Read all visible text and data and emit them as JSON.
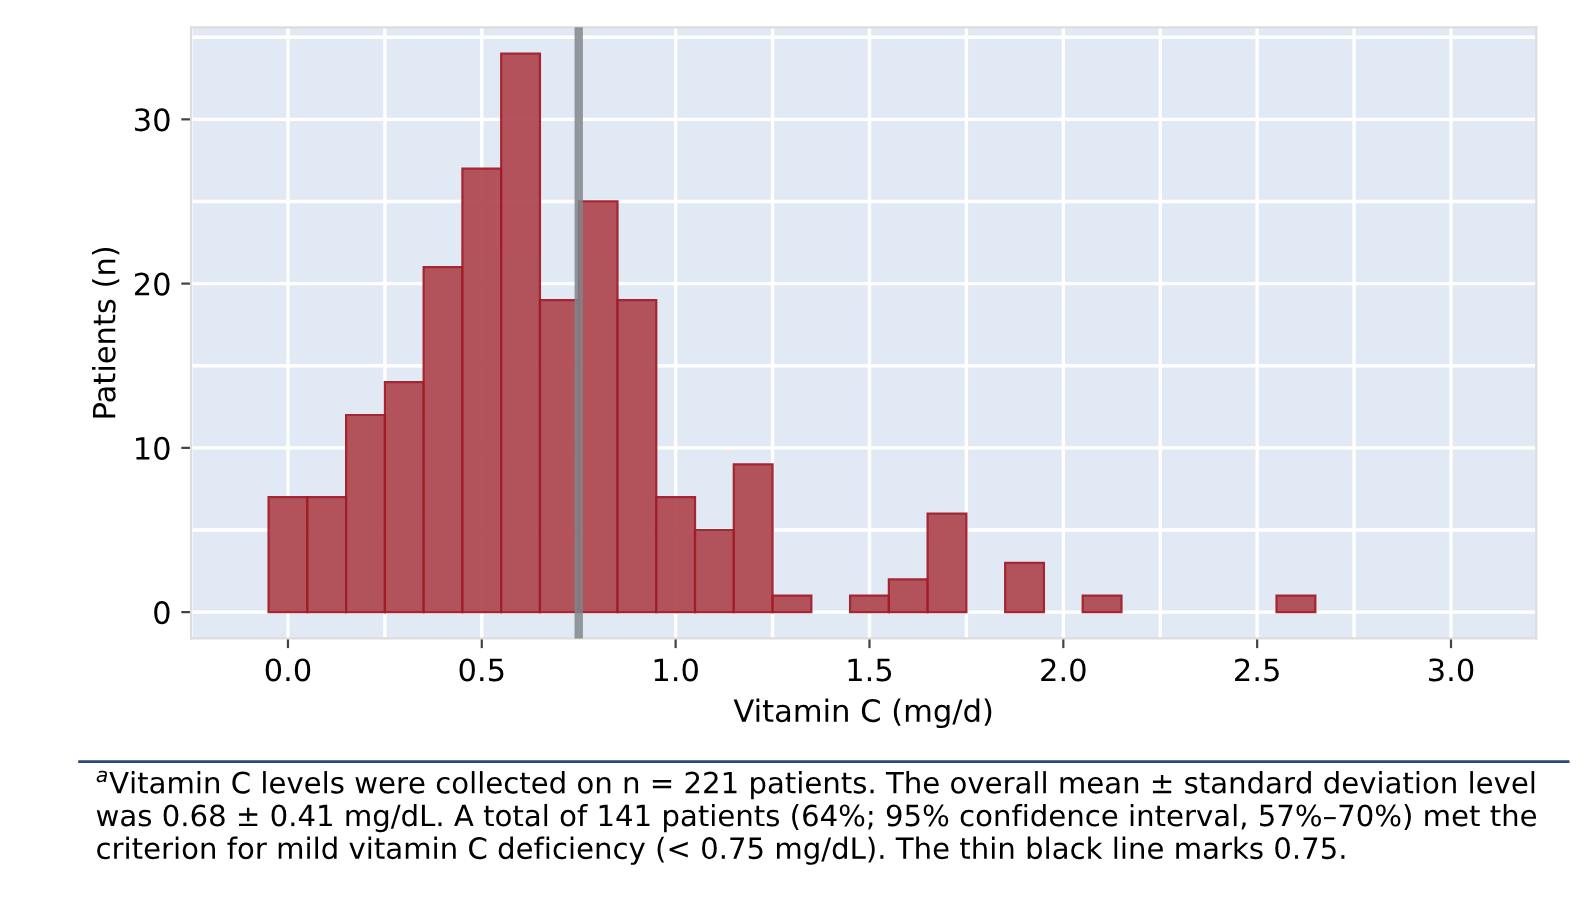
{
  "chart_data": {
    "type": "histogram",
    "xlabel": "Vitamin C (mg/d)",
    "ylabel": "Patients (n)",
    "bins": [
      -0.05,
      0.05,
      0.15,
      0.25,
      0.35,
      0.45,
      0.55,
      0.65,
      0.75,
      0.85,
      0.95,
      1.05,
      1.15,
      1.25,
      1.35,
      1.45,
      1.55,
      1.65,
      1.75,
      1.85,
      1.95,
      2.05,
      2.15,
      2.25,
      2.35,
      2.45,
      2.55,
      2.65
    ],
    "values": [
      7,
      7,
      12,
      14,
      21,
      27,
      34,
      19,
      25,
      19,
      7,
      5,
      9,
      1,
      0,
      1,
      2,
      6,
      0,
      3,
      0,
      1,
      0,
      0,
      0,
      0,
      1
    ],
    "color": "#b04a52",
    "xlim": [
      -0.25,
      3.22
    ],
    "xticks": [
      {
        "value": -0.25,
        "label": null
      },
      {
        "value": 0,
        "label": "0.0"
      },
      {
        "value": 0.25,
        "label": null
      },
      {
        "value": 0.5,
        "label": "0.5"
      },
      {
        "value": 0.75,
        "label": null
      },
      {
        "value": 1,
        "label": "1.0"
      },
      {
        "value": 1.25,
        "label": null
      },
      {
        "value": 1.5,
        "label": "1.5"
      },
      {
        "value": 1.75,
        "label": null
      },
      {
        "value": 2,
        "label": "2.0"
      },
      {
        "value": 2.25,
        "label": null
      },
      {
        "value": 2.5,
        "label": "2.5"
      },
      {
        "value": 2.75,
        "label": null
      },
      {
        "value": 3,
        "label": "3.0"
      }
    ],
    "ylim": [
      -1.6,
      35.6
    ],
    "yticks": [
      0,
      {
        "value": 5,
        "label": null
      },
      10,
      {
        "value": 15,
        "label": null
      },
      20,
      {
        "value": 25,
        "label": null
      },
      30,
      {
        "value": 35,
        "label": null
      }
    ],
    "grid": true,
    "ref_lines": [
      {
        "axis": "x",
        "value": 0.75,
        "color": "#7f868c"
      }
    ],
    "annotations": [
      "$^{a}$Vitamin C levels were collected on n = 221 patients. The overall mean ± standard deviation level was 0.68 ± 0.41 mg/dL. A total of 141 patients (64%; 95% confidence interval, 57%–70%) met the criterion for mild vitamin C deficiency (< 0.75 mg/dL). The thin black line marks 0.75."
    ]
  }
}
